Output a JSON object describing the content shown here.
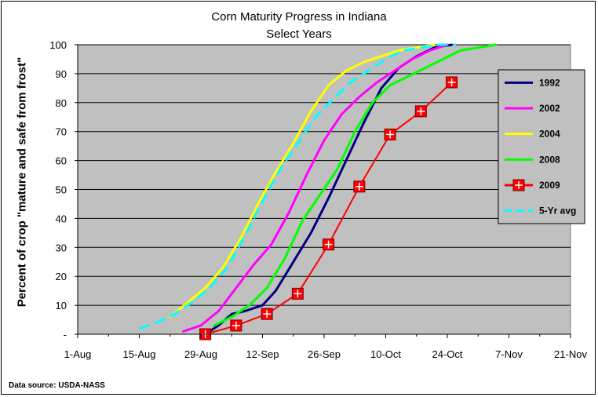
{
  "chart_data": {
    "type": "line",
    "title": "Corn Maturity Progress in Indiana",
    "subtitle": "Select Years",
    "ylabel": "Percent of crop \"mature and safe from frost\"",
    "xlabel": "",
    "ylim": [
      0,
      100
    ],
    "y_ticks": [
      "-",
      "10",
      "20",
      "30",
      "40",
      "50",
      "60",
      "70",
      "80",
      "90",
      "100"
    ],
    "x_ticks": [
      "1-Aug",
      "15-Aug",
      "29-Aug",
      "12-Sep",
      "26-Sep",
      "10-Oct",
      "24-Oct",
      "7-Nov",
      "21-Nov"
    ],
    "xlim": [
      "2023-08-01",
      "2023-11-21"
    ],
    "grid": "horizontal",
    "legend_position": "right",
    "plot_background": "#c0c0c0",
    "series": [
      {
        "name": "1992",
        "color": "#000080",
        "style": "solid",
        "marker": "none",
        "x": [
          "2023-08-30",
          "2023-09-02",
          "2023-09-05",
          "2023-09-08",
          "2023-09-12",
          "2023-09-15",
          "2023-09-19",
          "2023-09-23",
          "2023-09-27",
          "2023-10-01",
          "2023-10-05",
          "2023-10-09",
          "2023-10-13",
          "2023-10-17",
          "2023-10-21",
          "2023-10-25"
        ],
        "y": [
          0,
          3,
          7,
          8,
          10,
          15,
          25,
          35,
          47,
          60,
          73,
          85,
          92,
          96,
          99,
          100
        ]
      },
      {
        "name": "2002",
        "color": "#ff00ff",
        "style": "solid",
        "marker": "none",
        "x": [
          "2023-08-25",
          "2023-08-29",
          "2023-09-02",
          "2023-09-06",
          "2023-09-10",
          "2023-09-14",
          "2023-09-18",
          "2023-09-22",
          "2023-09-26",
          "2023-09-30",
          "2023-10-04",
          "2023-10-08",
          "2023-10-12",
          "2023-10-16",
          "2023-10-20",
          "2023-10-24"
        ],
        "y": [
          1,
          3,
          8,
          16,
          24,
          31,
          42,
          55,
          67,
          76,
          82,
          87,
          91,
          95,
          98,
          100
        ]
      },
      {
        "name": "2004",
        "color": "#ffff00",
        "style": "solid",
        "marker": "none",
        "x": [
          "2023-08-22",
          "2023-08-26",
          "2023-08-30",
          "2023-09-03",
          "2023-09-07",
          "2023-09-11",
          "2023-09-15",
          "2023-09-19",
          "2023-09-23",
          "2023-09-27",
          "2023-10-01",
          "2023-10-05",
          "2023-10-09",
          "2023-10-13",
          "2023-10-17",
          "2023-10-21"
        ],
        "y": [
          6,
          11,
          16,
          23,
          33,
          45,
          56,
          66,
          77,
          86,
          91,
          94,
          96,
          98,
          99,
          100
        ]
      },
      {
        "name": "2008",
        "color": "#00ff00",
        "style": "solid",
        "marker": "none",
        "x": [
          "2023-09-01",
          "2023-09-05",
          "2023-09-09",
          "2023-09-13",
          "2023-09-17",
          "2023-09-21",
          "2023-09-25",
          "2023-09-29",
          "2023-10-03",
          "2023-10-07",
          "2023-10-11",
          "2023-10-15",
          "2023-10-19",
          "2023-10-23",
          "2023-10-27",
          "2023-10-31",
          "2023-11-04"
        ],
        "y": [
          3,
          6,
          10,
          16,
          26,
          39,
          48,
          57,
          70,
          80,
          86,
          89,
          92,
          95,
          98,
          99,
          100
        ]
      },
      {
        "name": "2009",
        "color": "#ff0000",
        "style": "solid",
        "marker": "square-plus",
        "x": [
          "2023-08-30",
          "2023-09-06",
          "2023-09-13",
          "2023-09-20",
          "2023-09-27",
          "2023-10-04",
          "2023-10-11",
          "2023-10-18",
          "2023-10-25"
        ],
        "y": [
          0,
          3,
          7,
          14,
          31,
          51,
          69,
          77,
          87
        ]
      },
      {
        "name": "5-Yr avg",
        "color": "#00ffff",
        "style": "dashed",
        "marker": "none",
        "x": [
          "2023-08-15",
          "2023-08-19",
          "2023-08-23",
          "2023-08-27",
          "2023-08-31",
          "2023-09-04",
          "2023-09-08",
          "2023-09-12",
          "2023-09-16",
          "2023-09-20",
          "2023-09-24",
          "2023-09-28",
          "2023-10-02",
          "2023-10-06",
          "2023-10-10",
          "2023-10-14",
          "2023-10-18",
          "2023-10-22",
          "2023-10-26"
        ],
        "y": [
          2,
          4,
          7,
          11,
          16,
          23,
          34,
          46,
          57,
          66,
          75,
          81,
          87,
          91,
          95,
          98,
          99,
          100,
          100
        ]
      }
    ]
  },
  "footer": {
    "source": "Data source: USDA-NASS"
  }
}
